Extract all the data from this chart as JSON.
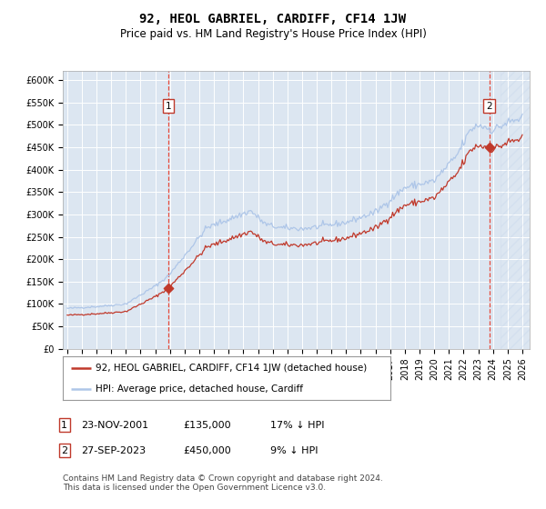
{
  "title": "92, HEOL GABRIEL, CARDIFF, CF14 1JW",
  "subtitle": "Price paid vs. HM Land Registry's House Price Index (HPI)",
  "hpi_label": "HPI: Average price, detached house, Cardiff",
  "price_label": "92, HEOL GABRIEL, CARDIFF, CF14 1JW (detached house)",
  "footnote": "Contains HM Land Registry data © Crown copyright and database right 2024.\nThis data is licensed under the Open Government Licence v3.0.",
  "annotation1": {
    "num": "1",
    "date": "23-NOV-2001",
    "price": "£135,000",
    "pct": "17% ↓ HPI"
  },
  "annotation2": {
    "num": "2",
    "date": "27-SEP-2023",
    "price": "£450,000",
    "pct": "9% ↓ HPI"
  },
  "x_start_year": 1995,
  "x_end_year": 2026,
  "ylim": [
    0,
    620000
  ],
  "yticks": [
    0,
    50000,
    100000,
    150000,
    200000,
    250000,
    300000,
    350000,
    400000,
    450000,
    500000,
    550000,
    600000
  ],
  "point1_year": 2001.9,
  "point1_price": 135000,
  "point2_year": 2023.75,
  "point2_price": 450000,
  "vline1_year": 2001.9,
  "vline2_year": 2023.75,
  "bg_color": "#dce6f1",
  "hpi_line_color": "#aec6e8",
  "price_line_color": "#c0392b",
  "point_color": "#c0392b",
  "vline_color": "#e74c3c",
  "grid_color": "#ffffff",
  "title_fontsize": 10,
  "subtitle_fontsize": 8.5,
  "tick_fontsize": 7,
  "legend_fontsize": 7.5,
  "annot_fontsize": 8
}
